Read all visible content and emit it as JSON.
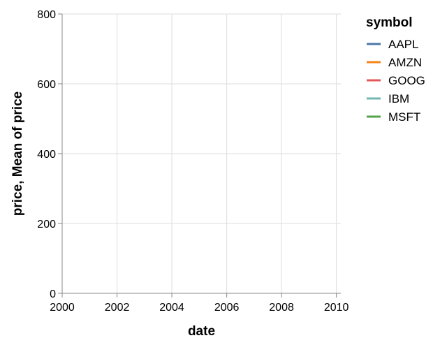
{
  "chart_data": {
    "type": "line",
    "title": "",
    "xlabel": "date",
    "ylabel": "price, Mean of price",
    "x_ticks": [
      "2000",
      "2002",
      "2004",
      "2006",
      "2008",
      "2010"
    ],
    "y_ticks": [
      0,
      200,
      400,
      600,
      800
    ],
    "xlim": [
      "2000-01-01",
      "2010-03-01"
    ],
    "ylim": [
      0,
      800
    ],
    "grid": true,
    "legend": {
      "title": "symbol",
      "position": "right"
    },
    "series": [
      {
        "name": "AAPL",
        "color": "#4c78a8",
        "values": []
      },
      {
        "name": "AMZN",
        "color": "#f58518",
        "values": []
      },
      {
        "name": "GOOG",
        "color": "#e45756",
        "values": []
      },
      {
        "name": "IBM",
        "color": "#72b7b2",
        "values": []
      },
      {
        "name": "MSFT",
        "color": "#54a24b",
        "values": []
      }
    ]
  }
}
